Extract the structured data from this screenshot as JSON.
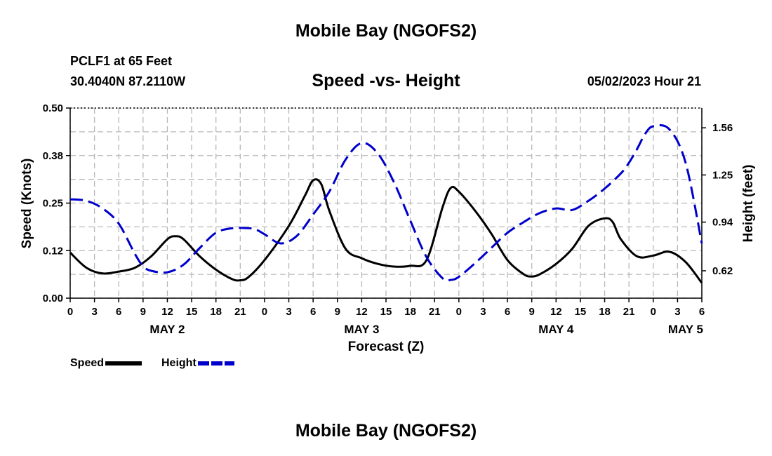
{
  "header": {
    "title": "Mobile Bay (NGOFS2)",
    "station": "PCLF1 at 65 Feet",
    "coords": "30.4040N  87.2110W",
    "subtitle": "Speed -vs- Height",
    "timestamp": "05/02/2023 Hour 21"
  },
  "footer": {
    "title": "Mobile Bay (NGOFS2)"
  },
  "chart_data": {
    "type": "line",
    "title": "Speed -vs- Height",
    "xlabel": "Forecast (Z)",
    "ylabel": "Speed (Knots)",
    "y2label": "Height (feet)",
    "grid": true,
    "x_unit": "hours from 2023-05-02 00Z",
    "xlim": [
      0,
      78
    ],
    "ylim": [
      0,
      0.5
    ],
    "y2lim": [
      0.44,
      1.69
    ],
    "x_tick_values": [
      0,
      3,
      6,
      9,
      12,
      15,
      18,
      21,
      24,
      27,
      30,
      33,
      36,
      39,
      42,
      45,
      48,
      51,
      54,
      57,
      60,
      63,
      66,
      69,
      72,
      75,
      78
    ],
    "x_tick_labels": [
      "0",
      "3",
      "6",
      "9",
      "12",
      "15",
      "18",
      "21",
      "0",
      "3",
      "6",
      "9",
      "12",
      "15",
      "18",
      "21",
      "0",
      "3",
      "6",
      "9",
      "12",
      "15",
      "18",
      "21",
      "0",
      "3",
      "6"
    ],
    "date_labels": [
      {
        "x": 12,
        "label": "MAY 2"
      },
      {
        "x": 36,
        "label": "MAY 3"
      },
      {
        "x": 60,
        "label": "MAY 4"
      },
      {
        "x": 76,
        "label": "MAY 5"
      }
    ],
    "y_ticks": [
      0,
      0.125,
      0.25,
      0.375,
      0.5
    ],
    "y_tick_labels": [
      "0.00",
      "0.12",
      "0.25",
      "0.38",
      "0.50"
    ],
    "y2_ticks": [
      0.62,
      0.94,
      1.25,
      1.56
    ],
    "y2_tick_labels": [
      "0.62",
      "0.94",
      "1.25",
      "1.56"
    ],
    "series": [
      {
        "name": "Speed",
        "axis": "left",
        "color": "#000000",
        "dash": "solid",
        "x": [
          0,
          2,
          4,
          6,
          8,
          10,
          12,
          13,
          14,
          16,
          18,
          20,
          21,
          22,
          24,
          27,
          29,
          30,
          31,
          32,
          34,
          36,
          38,
          40,
          42,
          44,
          46,
          47,
          48,
          50,
          52,
          54,
          56,
          57,
          58,
          60,
          62,
          64,
          66,
          67,
          68,
          70,
          72,
          74,
          76,
          78
        ],
        "y": [
          0.12,
          0.08,
          0.065,
          0.07,
          0.08,
          0.11,
          0.155,
          0.163,
          0.155,
          0.11,
          0.075,
          0.05,
          0.047,
          0.055,
          0.1,
          0.19,
          0.27,
          0.31,
          0.3,
          0.23,
          0.13,
          0.105,
          0.09,
          0.083,
          0.085,
          0.1,
          0.24,
          0.29,
          0.28,
          0.23,
          0.17,
          0.1,
          0.063,
          0.057,
          0.063,
          0.09,
          0.13,
          0.19,
          0.21,
          0.2,
          0.155,
          0.11,
          0.112,
          0.122,
          0.095,
          0.04
        ]
      },
      {
        "name": "Height",
        "axis": "right",
        "color": "#0000cc",
        "dash": "dashed",
        "x": [
          0,
          2,
          4,
          6,
          8,
          9,
          10,
          12,
          14,
          16,
          18,
          20,
          22,
          23,
          24,
          26,
          28,
          30,
          32,
          34,
          36,
          38,
          40,
          42,
          44,
          46,
          47,
          48,
          50,
          52,
          54,
          56,
          58,
          60,
          62,
          64,
          66,
          68,
          69,
          70,
          71,
          72,
          74,
          76,
          78
        ],
        "y": [
          1.09,
          1.08,
          1.03,
          0.93,
          0.73,
          0.65,
          0.62,
          0.61,
          0.66,
          0.77,
          0.87,
          0.9,
          0.9,
          0.89,
          0.86,
          0.8,
          0.85,
          0.99,
          1.14,
          1.35,
          1.46,
          1.39,
          1.2,
          0.95,
          0.71,
          0.57,
          0.56,
          0.58,
          0.67,
          0.77,
          0.87,
          0.94,
          1.0,
          1.03,
          1.02,
          1.08,
          1.16,
          1.26,
          1.33,
          1.42,
          1.52,
          1.57,
          1.55,
          1.33,
          0.8
        ]
      }
    ]
  },
  "legend": {
    "speed_label": "Speed",
    "height_label": "Height",
    "speed_color": "#000000",
    "height_color": "#0000cc"
  }
}
